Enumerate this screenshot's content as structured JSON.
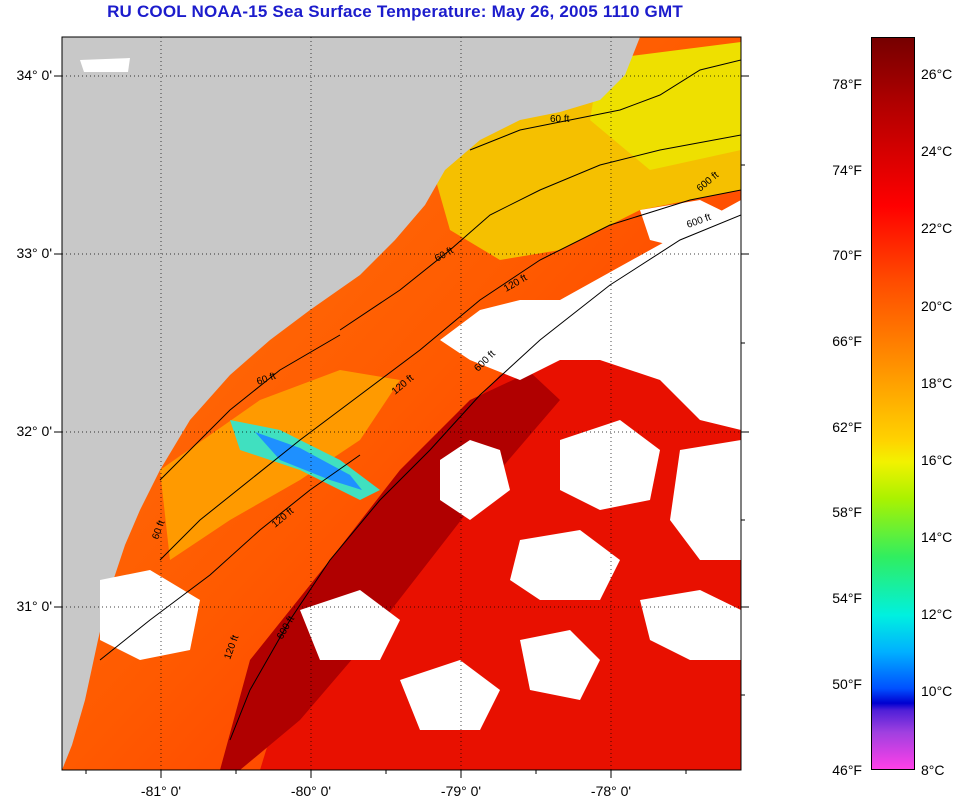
{
  "title": "RU COOL  NOAA-15  Sea Surface Temperature:  May 26, 2005 1110 GMT",
  "map": {
    "lat_labels": [
      "34° 0'",
      "33° 0'",
      "32° 0'",
      "31° 0'"
    ],
    "lon_labels": [
      "-81° 0'",
      "-80° 0'",
      "-79° 0'",
      "-78° 0'"
    ],
    "isobath_labels": [
      "60 ft",
      "60 ft",
      "60 ft",
      "60 ft",
      "120 ft",
      "120 ft",
      "120 ft",
      "120 ft",
      "600 ft",
      "600 ft",
      "600 ft",
      "600 ft"
    ]
  },
  "colorbar": {
    "fahrenheit_labels": [
      "78°F",
      "74°F",
      "70°F",
      "66°F",
      "62°F",
      "58°F",
      "54°F",
      "50°F",
      "46°F"
    ],
    "celsius_labels": [
      "26°C",
      "24°C",
      "22°C",
      "20°C",
      "18°C",
      "16°C",
      "14°C",
      "12°C",
      "10°C",
      "8°C"
    ]
  },
  "colors": {
    "title": "#1c1ccc",
    "land": "#c8c8c8",
    "cloud": "#ffffff",
    "sst_warm": "#c00000",
    "sst_mid": "#ff8c00",
    "sst_cool": "#f2e400"
  }
}
